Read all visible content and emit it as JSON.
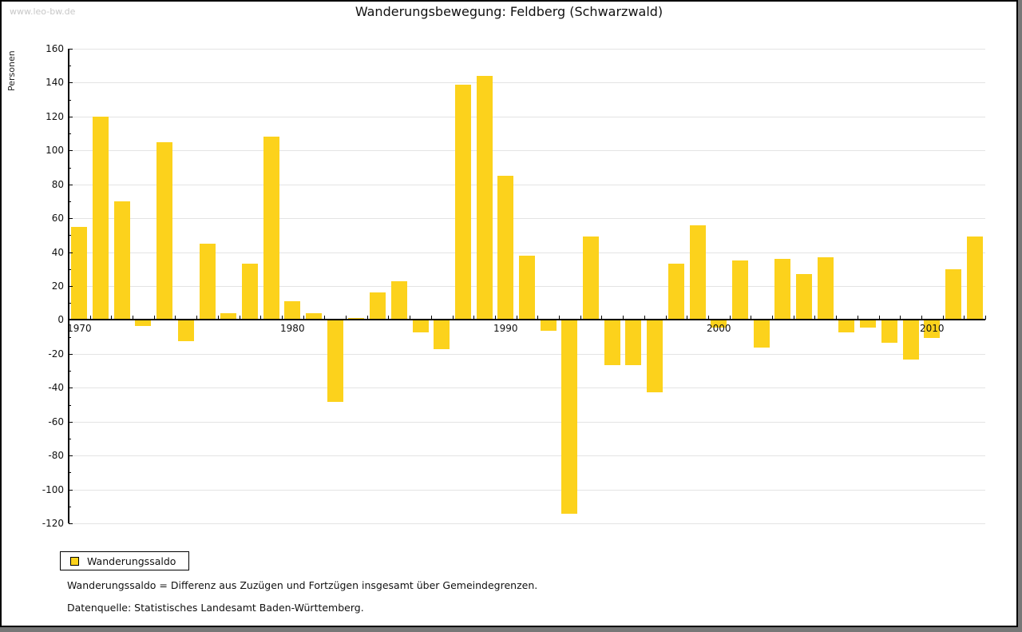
{
  "watermark": "www.leo-bw.de",
  "title": "Wanderungsbewegung: Feldberg (Schwarzwald)",
  "chart_data": {
    "type": "bar",
    "title": "Wanderungsbewegung: Feldberg (Schwarzwald)",
    "ylabel": "Personen",
    "xlabel": "",
    "ylim": [
      -120,
      160
    ],
    "ytick_step": 20,
    "ytick_minor_step": 10,
    "grid": true,
    "legend_position": "bottom-left",
    "series_name": "Wanderungssaldo",
    "bar_color": "#FCD21C",
    "categories": [
      "1970",
      "1971",
      "1972",
      "1973",
      "1974",
      "1975",
      "1976",
      "1977",
      "1978",
      "1979",
      "1980",
      "1981",
      "1982",
      "1983",
      "1984",
      "1985",
      "1986",
      "1987",
      "1988",
      "1989",
      "1990",
      "1991",
      "1992",
      "1993",
      "1994",
      "1995",
      "1996",
      "1997",
      "1998",
      "1999",
      "2000",
      "2001",
      "2002",
      "2003",
      "2004",
      "2005",
      "2006",
      "2007",
      "2008",
      "2009",
      "2010",
      "2011",
      "2012"
    ],
    "values": [
      55,
      120,
      70,
      -3,
      105,
      -12,
      45,
      4,
      33,
      108,
      11,
      4,
      -48,
      1,
      16,
      23,
      -7,
      -17,
      139,
      144,
      85,
      38,
      -6,
      -114,
      49,
      -26,
      -26,
      -42,
      33,
      56,
      -4,
      35,
      -16,
      36,
      27,
      37,
      -7,
      -4,
      -13,
      -23,
      -10,
      30,
      49
    ],
    "x_axis_labels": [
      "1970",
      "1980",
      "1990",
      "2000",
      "2010"
    ]
  },
  "legend": {
    "label": "Wanderungssaldo",
    "swatch_color": "#FCD21C"
  },
  "notes": {
    "definition": "Wanderungssaldo = Differenz aus Zuzügen und Fortzügen insgesamt über Gemeindegrenzen.",
    "source": "Datenquelle: Statistisches Landesamt Baden-Württemberg."
  }
}
